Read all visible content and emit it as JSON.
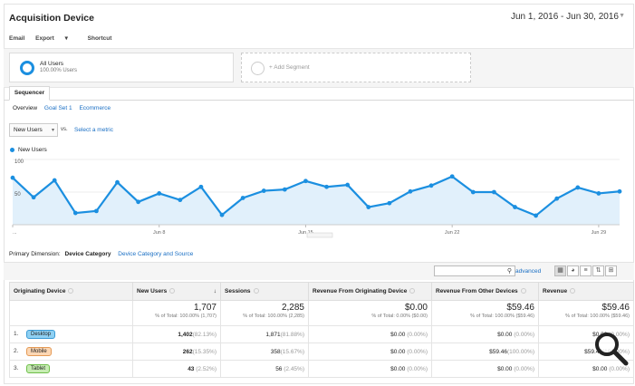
{
  "title": "Acquisition Device",
  "date_range": "Jun 1, 2016 - Jun 30, 2016",
  "toolbar": {
    "email": "Email",
    "export": "Export",
    "shortcut": "Shortcut"
  },
  "segment": {
    "name": "All Users",
    "sub": "100.00% Users",
    "add_label": "+ Add Segment"
  },
  "tab": "Sequencer",
  "subtabs": [
    "Overview",
    "Goal Set 1",
    "Ecommerce"
  ],
  "metric_select": "New Users",
  "vs_label": "vs.",
  "select_metric": "Select a metric",
  "legend_label": "New Users",
  "colors": {
    "accent": "#1b8fe0",
    "fill": "#e1f0fb",
    "link": "#1a6fc4"
  },
  "chart_data": {
    "type": "area",
    "series": [
      {
        "name": "New Users",
        "values": [
          72,
          42,
          68,
          18,
          21,
          65,
          35,
          48,
          38,
          58,
          15,
          41,
          52,
          54,
          67,
          58,
          61,
          27,
          33,
          51,
          60,
          74,
          50,
          50,
          27,
          14,
          40,
          57,
          48,
          51
        ]
      }
    ],
    "y_ticks": [
      "100",
      "50"
    ],
    "ylim": [
      0,
      100
    ],
    "x_tick_labels": [
      "...",
      "Jun 8",
      "Jun 15",
      "Jun 22",
      "Jun 29"
    ],
    "x_tick_days": [
      1,
      8,
      15,
      22,
      29
    ]
  },
  "dimension": {
    "label": "Primary Dimension:",
    "selected": "Device Category",
    "other": "Device Category and Source"
  },
  "table_tools": {
    "advanced": "advanced"
  },
  "table": {
    "headers": [
      "Originating Device",
      "New Users",
      "Sessions",
      "Revenue From Originating Device",
      "Revenue From Other Devices",
      "Revenue"
    ],
    "totals": [
      {
        "big": "1,707",
        "small": "% of Total: 100.00% (1,707)"
      },
      {
        "big": "2,285",
        "small": "% of Total: 100.00% (2,285)"
      },
      {
        "big": "$0.00",
        "small": "% of Total: 0.00% ($0.00)"
      },
      {
        "big": "$59.46",
        "small": "% of Total: 100.00% ($59.46)"
      },
      {
        "big": "$59.46",
        "small": "% of Total: 100.00% ($59.46)"
      }
    ],
    "rows": [
      {
        "idx": "1.",
        "device": "Desktop",
        "color": "#8fd0f2",
        "border": "#3b9bd6",
        "new_users": "1,402",
        "new_users_pct": "(82.13%)",
        "sessions": "1,871",
        "sessions_pct": "(81.88%)",
        "rev_orig": "$0.00",
        "rev_orig_pct": "(0.00%)",
        "rev_other": "$0.00",
        "rev_other_pct": "(0.00%)",
        "revenue": "$0.00",
        "revenue_pct": "(0.00%)"
      },
      {
        "idx": "2.",
        "device": "Mobile",
        "color": "#fcd7b4",
        "border": "#e59a55",
        "new_users": "262",
        "new_users_pct": "(15.35%)",
        "sessions": "358",
        "sessions_pct": "(15.67%)",
        "rev_orig": "$0.00",
        "rev_orig_pct": "(0.00%)",
        "rev_other": "$59.46",
        "rev_other_pct": "(100.00%)",
        "revenue": "$59.46",
        "revenue_pct": "(100.00%)"
      },
      {
        "idx": "3.",
        "device": "Tablet",
        "color": "#c7ecb3",
        "border": "#6fbf4a",
        "new_users": "43",
        "new_users_pct": "(2.52%)",
        "sessions": "56",
        "sessions_pct": "(2.45%)",
        "rev_orig": "$0.00",
        "rev_orig_pct": "(0.00%)",
        "rev_other": "$0.00",
        "rev_other_pct": "(0.00%)",
        "revenue": "$0.00",
        "revenue_pct": "(0.00%)"
      }
    ]
  }
}
